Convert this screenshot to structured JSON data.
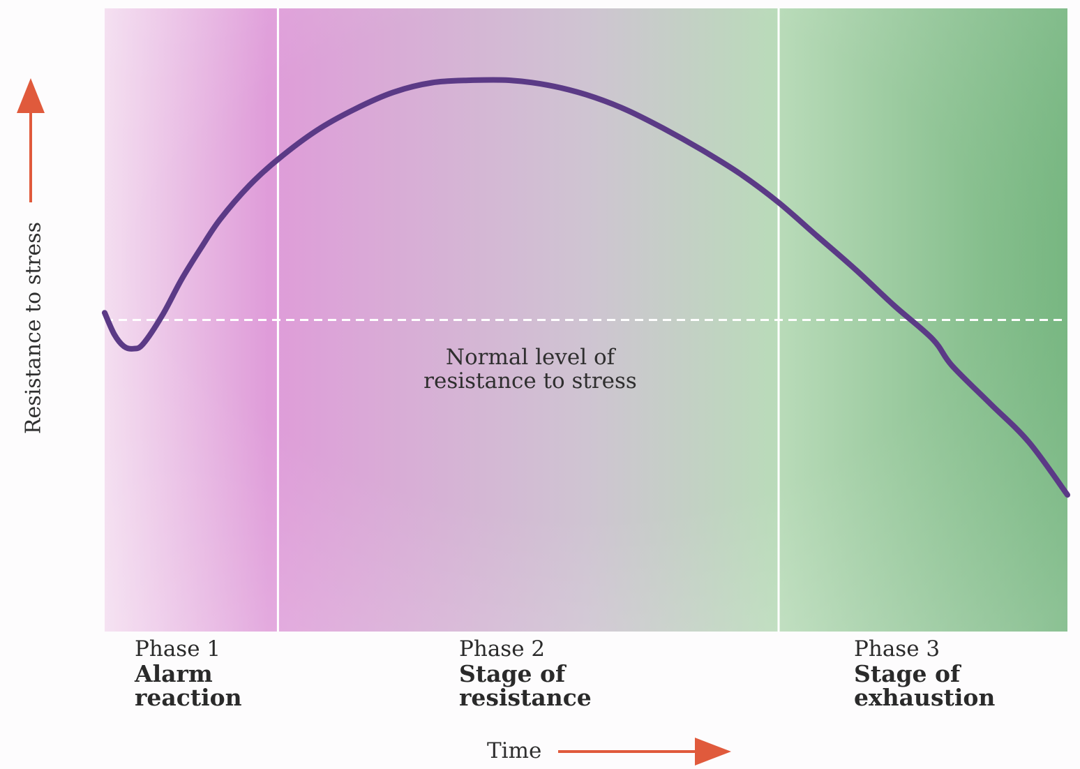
{
  "chart_data": {
    "type": "line",
    "title": "",
    "xlabel": "Time",
    "ylabel": "Resistance to stress",
    "x_axis_ticks": "none",
    "y_axis_ticks": "none",
    "grid": false,
    "reference_line": {
      "label": "Normal level of resistance to stress",
      "value": 0,
      "style": "dashed",
      "color": "#ffffff"
    },
    "phases": [
      {
        "number_label": "Phase 1",
        "name": "Alarm reaction",
        "range": [
          0,
          0.18
        ]
      },
      {
        "number_label": "Phase 2",
        "name": "Stage of resistance",
        "range": [
          0.18,
          0.7
        ]
      },
      {
        "number_label": "Phase 3",
        "name": "Stage of exhaustion",
        "range": [
          0.7,
          1.0
        ]
      }
    ],
    "series": [
      {
        "color": "#5b3a86",
        "x": [
          0.0,
          0.01,
          0.02,
          0.03,
          0.04,
          0.06,
          0.08,
          0.1,
          0.12,
          0.15,
          0.18,
          0.22,
          0.26,
          0.3,
          0.34,
          0.38,
          0.42,
          0.46,
          0.5,
          0.54,
          0.58,
          0.62,
          0.66,
          0.7,
          0.74,
          0.78,
          0.82,
          0.86,
          0.88,
          0.92,
          0.96,
          1.0
        ],
        "y": [
          0.03,
          -0.06,
          -0.11,
          -0.12,
          -0.1,
          0.02,
          0.17,
          0.3,
          0.42,
          0.56,
          0.67,
          0.79,
          0.88,
          0.95,
          0.99,
          1.0,
          1.0,
          0.98,
          0.94,
          0.88,
          0.8,
          0.71,
          0.61,
          0.49,
          0.35,
          0.21,
          0.06,
          -0.08,
          -0.19,
          -0.35,
          -0.51,
          -0.73
        ]
      }
    ],
    "xlim": [
      0,
      1
    ],
    "ylim": [
      -1.3,
      1.3
    ],
    "colors": {
      "panel_left": "#f3dcef",
      "panel_magenta": "#df9cd9",
      "panel_middle": "#cfc4d2",
      "panel_green_light": "#b9dbb9",
      "panel_green_dark": "#71b37b",
      "axis_arrow": "#e05a3c",
      "divider": "#ffffff"
    }
  }
}
